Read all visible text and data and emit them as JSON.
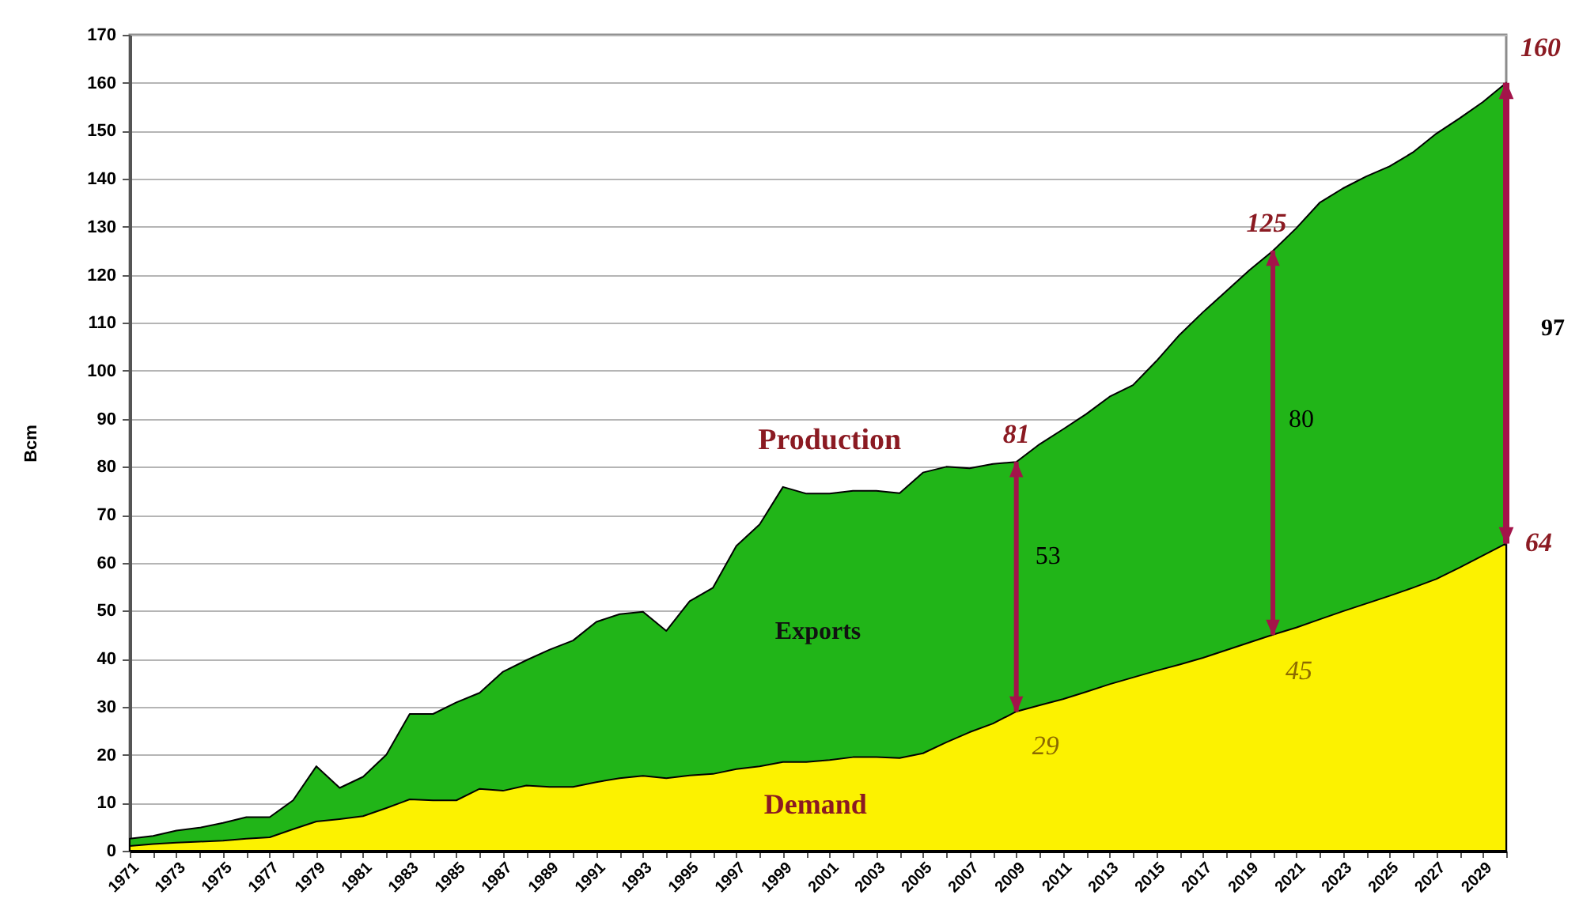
{
  "chart_data": {
    "type": "area",
    "x": [
      1971,
      1972,
      1973,
      1974,
      1975,
      1976,
      1977,
      1978,
      1979,
      1980,
      1981,
      1982,
      1983,
      1984,
      1985,
      1986,
      1987,
      1988,
      1989,
      1990,
      1991,
      1992,
      1993,
      1994,
      1995,
      1996,
      1997,
      1998,
      1999,
      2000,
      2001,
      2002,
      2003,
      2004,
      2005,
      2006,
      2007,
      2008,
      2009,
      2010,
      2011,
      2012,
      2013,
      2014,
      2015,
      2016,
      2017,
      2018,
      2019,
      2020,
      2021,
      2022,
      2023,
      2024,
      2025,
      2026,
      2027,
      2028,
      2029,
      2030
    ],
    "xlim": [
      1971,
      2030
    ],
    "xticks": [
      1971,
      {
        "value": 1972,
        "label": null
      },
      1973,
      {
        "value": 1974,
        "label": null
      },
      1975,
      {
        "value": 1976,
        "label": null
      },
      1977,
      {
        "value": 1978,
        "label": null
      },
      1979,
      {
        "value": 1980,
        "label": null
      },
      1981,
      {
        "value": 1982,
        "label": null
      },
      1983,
      {
        "value": 1984,
        "label": null
      },
      1985,
      {
        "value": 1986,
        "label": null
      },
      1987,
      {
        "value": 1988,
        "label": null
      },
      1989,
      {
        "value": 1990,
        "label": null
      },
      1991,
      {
        "value": 1992,
        "label": null
      },
      1993,
      {
        "value": 1994,
        "label": null
      },
      1995,
      {
        "value": 1996,
        "label": null
      },
      1997,
      {
        "value": 1998,
        "label": null
      },
      1999,
      {
        "value": 2000,
        "label": null
      },
      2001,
      {
        "value": 2002,
        "label": null
      },
      2003,
      {
        "value": 2004,
        "label": null
      },
      2005,
      {
        "value": 2006,
        "label": null
      },
      2007,
      {
        "value": 2008,
        "label": null
      },
      2009,
      {
        "value": 2010,
        "label": null
      },
      2011,
      {
        "value": 2012,
        "label": null
      },
      2013,
      {
        "value": 2014,
        "label": null
      },
      2015,
      {
        "value": 2016,
        "label": null
      },
      2017,
      {
        "value": 2018,
        "label": null
      },
      2019,
      {
        "value": 2020,
        "label": null
      },
      2021,
      {
        "value": 2022,
        "label": null
      },
      2023,
      {
        "value": 2024,
        "label": null
      },
      2025,
      {
        "value": 2026,
        "label": null
      },
      2027,
      {
        "value": 2028,
        "label": null
      },
      2029,
      {
        "value": 2030,
        "label": null
      }
    ],
    "ylim": [
      0,
      170
    ],
    "yticks": [
      0,
      10,
      20,
      30,
      40,
      50,
      60,
      70,
      80,
      90,
      100,
      110,
      120,
      130,
      140,
      150,
      160,
      170
    ],
    "ylabel": "Bcm",
    "grid": "y",
    "series": [
      {
        "name": "Production",
        "color": "#21b518",
        "values": [
          2.5,
          3.1,
          4.2,
          4.8,
          5.8,
          7.0,
          7.0,
          10.5,
          17.6,
          13.1,
          15.4,
          20.0,
          28.5,
          28.5,
          30.9,
          32.9,
          37.3,
          39.7,
          41.9,
          43.8,
          47.7,
          49.3,
          49.8,
          45.8,
          52,
          54.8,
          63.5,
          68,
          75.8,
          74.4,
          74.4,
          75,
          75,
          74.5,
          78.8,
          80,
          79.7,
          80.6,
          81,
          84.7,
          87.8,
          91,
          94.6,
          97,
          102,
          107.5,
          112.2,
          116.6,
          121,
          125,
          129.7,
          135,
          138,
          140.5,
          142.6,
          145.5,
          149.4,
          152.6,
          156,
          160
        ]
      },
      {
        "name": "Demand",
        "color": "#fcf200",
        "values": [
          1.0,
          1.4,
          1.7,
          1.9,
          2.1,
          2.5,
          2.8,
          4.5,
          6.1,
          6.6,
          7.2,
          8.9,
          10.7,
          10.5,
          10.5,
          12.9,
          12.5,
          13.6,
          13.3,
          13.3,
          14.3,
          15.1,
          15.6,
          15.1,
          15.7,
          16,
          17,
          17.6,
          18.5,
          18.5,
          18.9,
          19.5,
          19.5,
          19.3,
          20.3,
          22.6,
          24.7,
          26.5,
          29,
          30.3,
          31.6,
          33.1,
          34.7,
          36.1,
          37.5,
          38.8,
          40.2,
          41.8,
          43.4,
          45,
          46.5,
          48.2,
          49.9,
          51.5,
          53.1,
          54.8,
          56.6,
          59,
          61.5,
          64
        ]
      }
    ],
    "annotations": [
      "Exports",
      {
        "text": "81",
        "x": 2009,
        "y": 81
      },
      "53",
      {
        "text": "29",
        "x": 2009,
        "y": 29
      },
      {
        "text": "125",
        "x": 2020,
        "y": 125
      },
      "80",
      {
        "text": "45",
        "x": 2020,
        "y": 45
      },
      {
        "text": "160",
        "x": 2030,
        "y": 160
      },
      "97",
      {
        "text": "64",
        "x": 2030,
        "y": 64
      }
    ]
  }
}
